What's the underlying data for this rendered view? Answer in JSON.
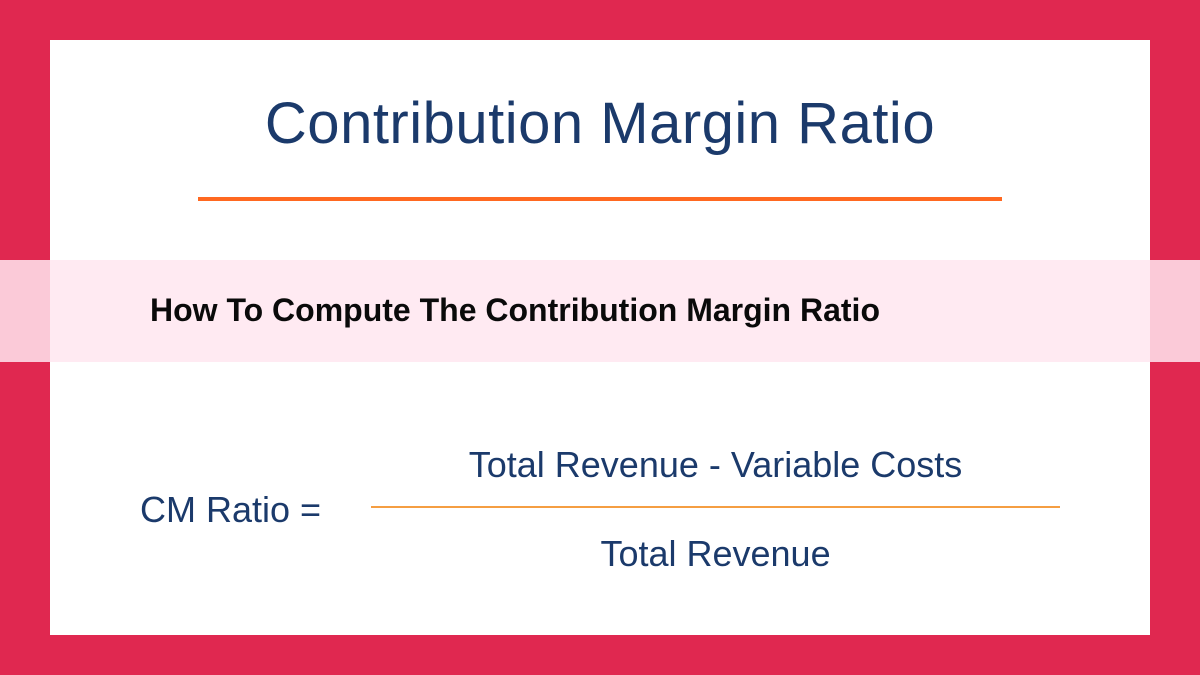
{
  "colors": {
    "frame_bg": "#e02850",
    "card_bg": "#ffffff",
    "title_text": "#1b3a6b",
    "divider": "#ff6820",
    "banner_bg": "rgba(255, 230, 240, 0.85)",
    "banner_text": "#0a0a0a",
    "formula_text": "#1b3a6b",
    "fraction_line": "#f59e42"
  },
  "main_title": "Contribution Margin Ratio",
  "banner_text": "How To Compute The Contribution Margin Ratio",
  "formula": {
    "label": "CM Ratio =",
    "numerator": "Total Revenue - Variable Costs",
    "denominator": "Total Revenue"
  },
  "typography": {
    "title_fontsize": 58,
    "banner_fontsize": 32,
    "formula_fontsize": 36
  }
}
